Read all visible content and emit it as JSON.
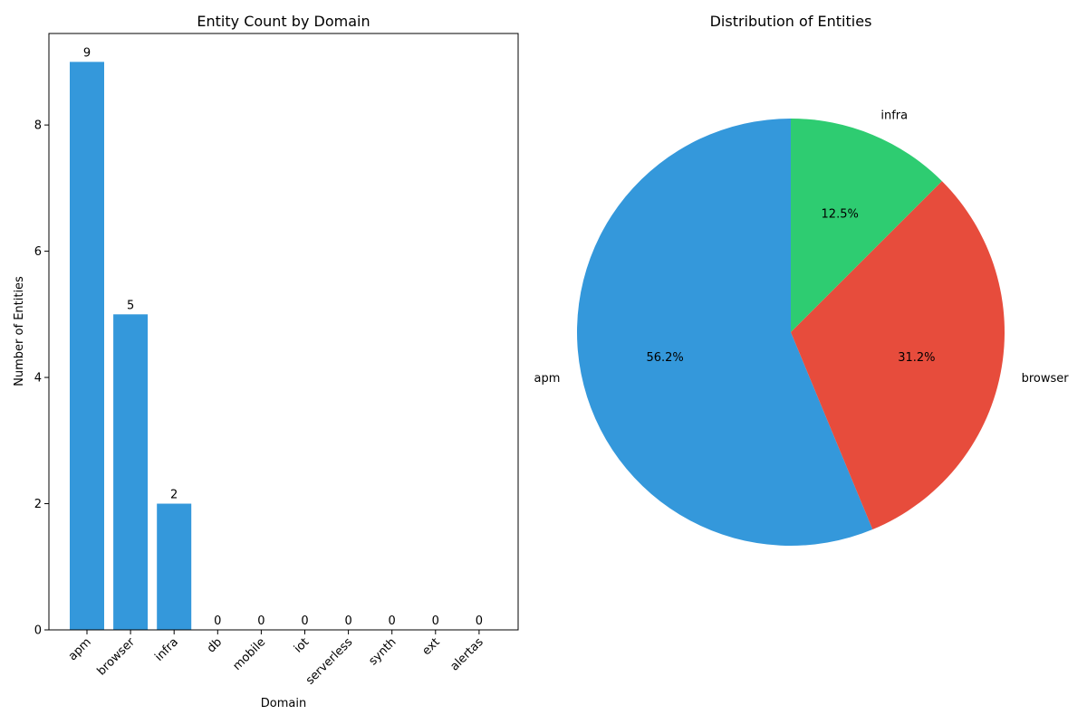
{
  "chart_data": [
    {
      "type": "bar",
      "title": "Entity Count by Domain",
      "xlabel": "Domain",
      "ylabel": "Number of Entities",
      "categories": [
        "apm",
        "browser",
        "infra",
        "db",
        "mobile",
        "iot",
        "serverless",
        "synth",
        "ext",
        "alertas"
      ],
      "values": [
        9,
        5,
        2,
        0,
        0,
        0,
        0,
        0,
        0,
        0
      ],
      "data_labels": [
        "9",
        "5",
        "2",
        "0",
        "0",
        "0",
        "0",
        "0",
        "0",
        "0"
      ],
      "ylim": [
        0,
        9.45
      ],
      "yticks": [
        0,
        2,
        4,
        6,
        8
      ],
      "ytick_labels": [
        "0",
        "2",
        "4",
        "6",
        "8"
      ],
      "grid": false,
      "color": "#3498db"
    },
    {
      "type": "pie",
      "title": "Distribution of Entities",
      "labels": [
        "apm",
        "browser",
        "infra"
      ],
      "values": [
        9,
        5,
        2
      ],
      "percent_labels": [
        "56.2%",
        "31.2%",
        "12.5%"
      ],
      "colors": [
        "#3498db",
        "#e74c3c",
        "#2ecc71"
      ],
      "start_angle_deg": 90,
      "direction": "counterclockwise"
    }
  ]
}
